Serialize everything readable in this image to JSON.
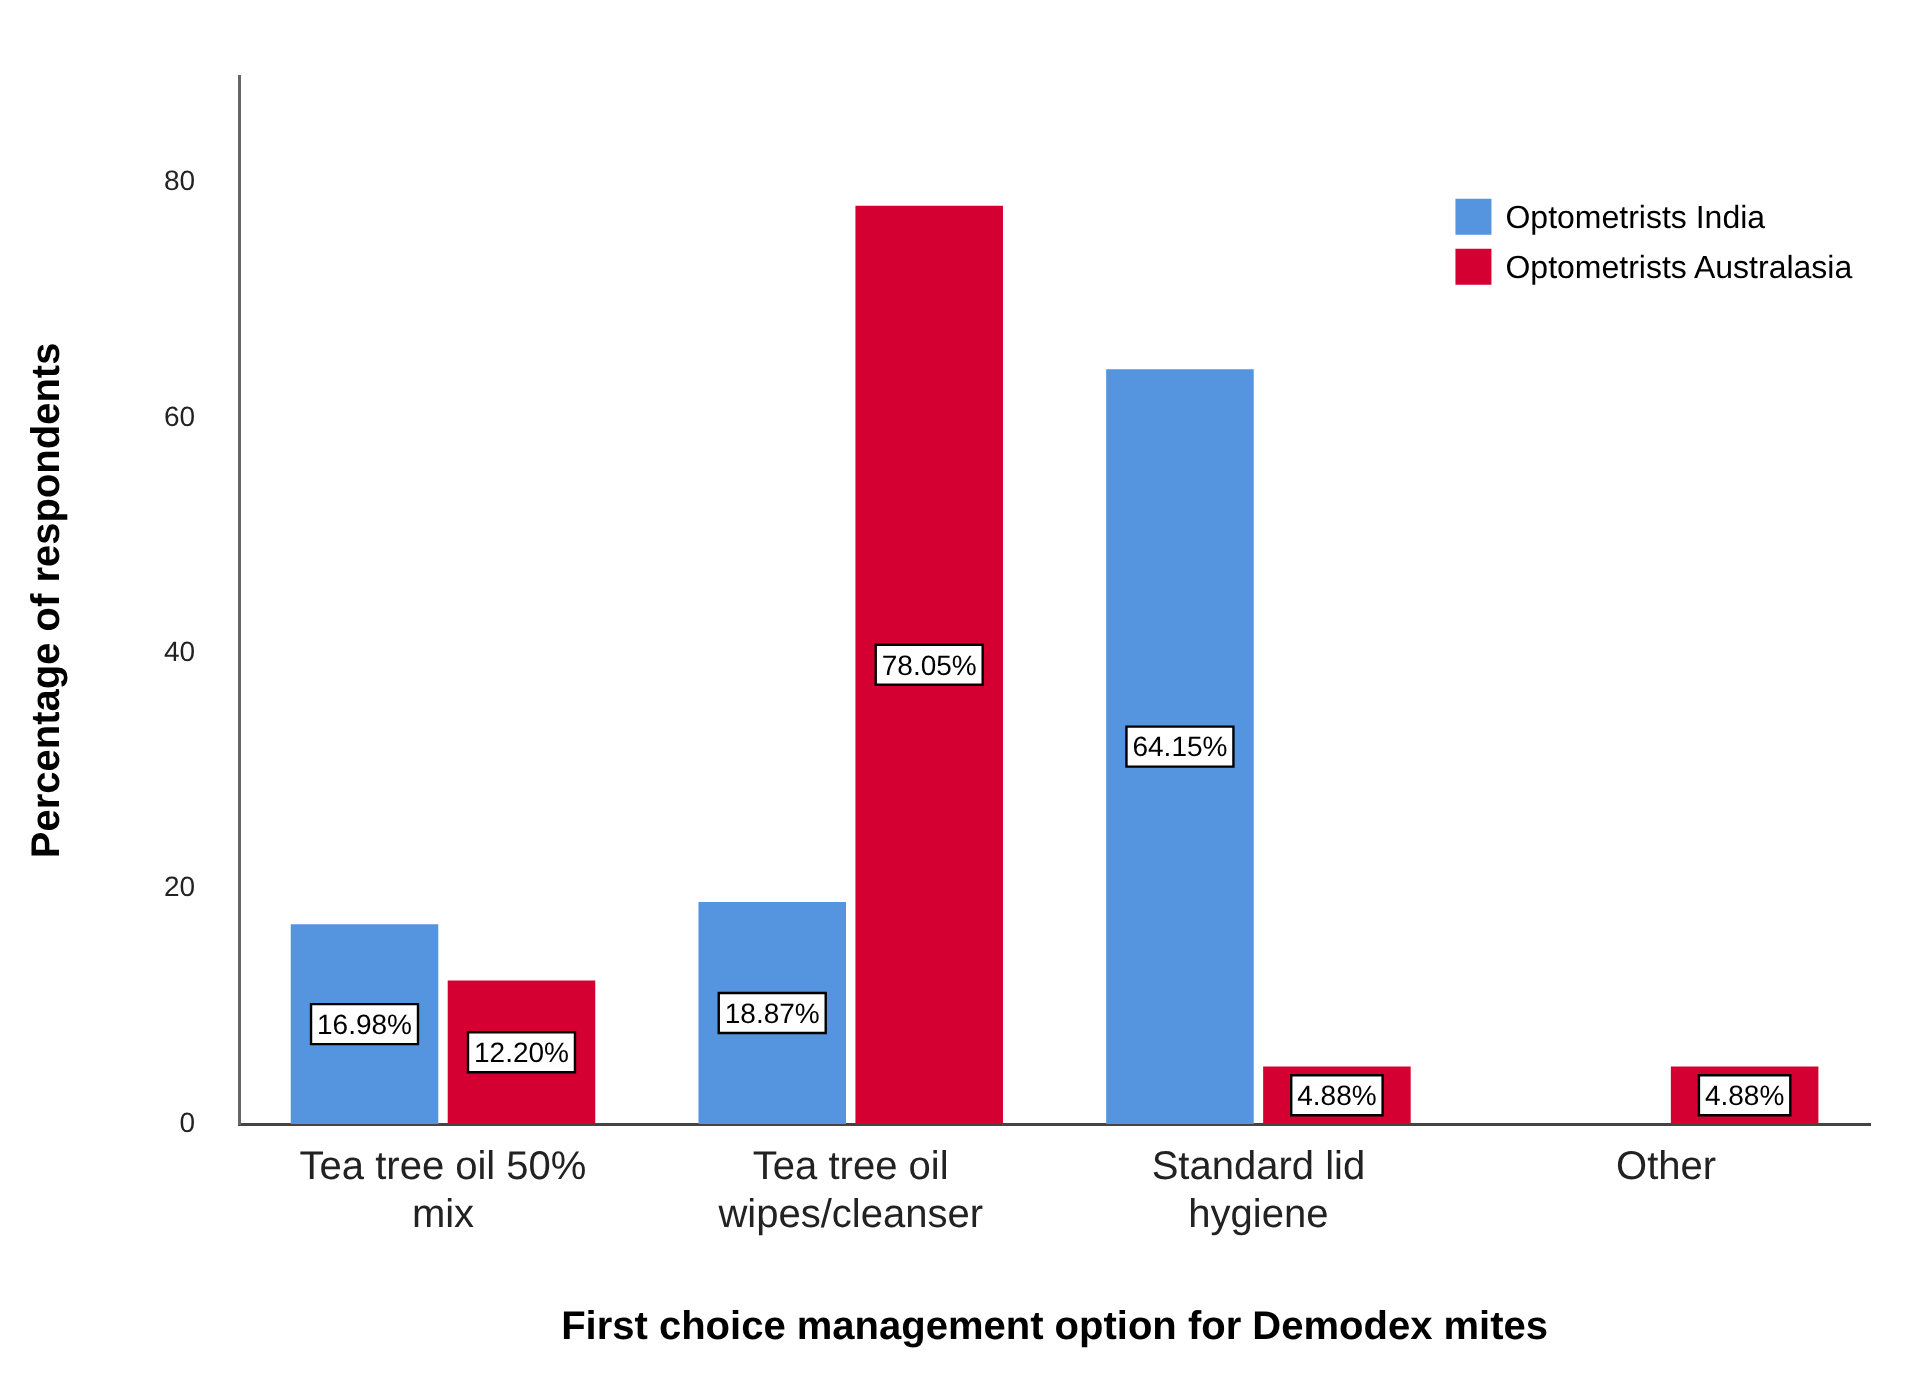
{
  "chart_data": {
    "type": "bar",
    "xlabel": "First choice management option for Demodex mites",
    "ylabel": "Percentage of respondents",
    "categories": [
      "Tea tree oil 50% mix",
      "Tea tree oil wipes/cleanser",
      "Standard lid hygiene",
      "Other"
    ],
    "series": [
      {
        "name": "Optometrists India",
        "color": "#5595e0",
        "values": [
          16.98,
          18.87,
          64.15,
          null
        ],
        "value_labels": [
          "16.98%",
          "18.87%",
          "64.15%",
          null
        ]
      },
      {
        "name": "Optometrists Australasia",
        "color": "#d50032",
        "values": [
          12.2,
          78.05,
          4.88,
          4.88
        ],
        "value_labels": [
          "12.20%",
          "78.05%",
          "4.88%",
          "4.88%"
        ]
      }
    ],
    "ylim": [
      0,
      89
    ],
    "yticks": [
      0,
      20,
      40,
      60,
      80
    ],
    "grid": false,
    "legend": "top right"
  }
}
